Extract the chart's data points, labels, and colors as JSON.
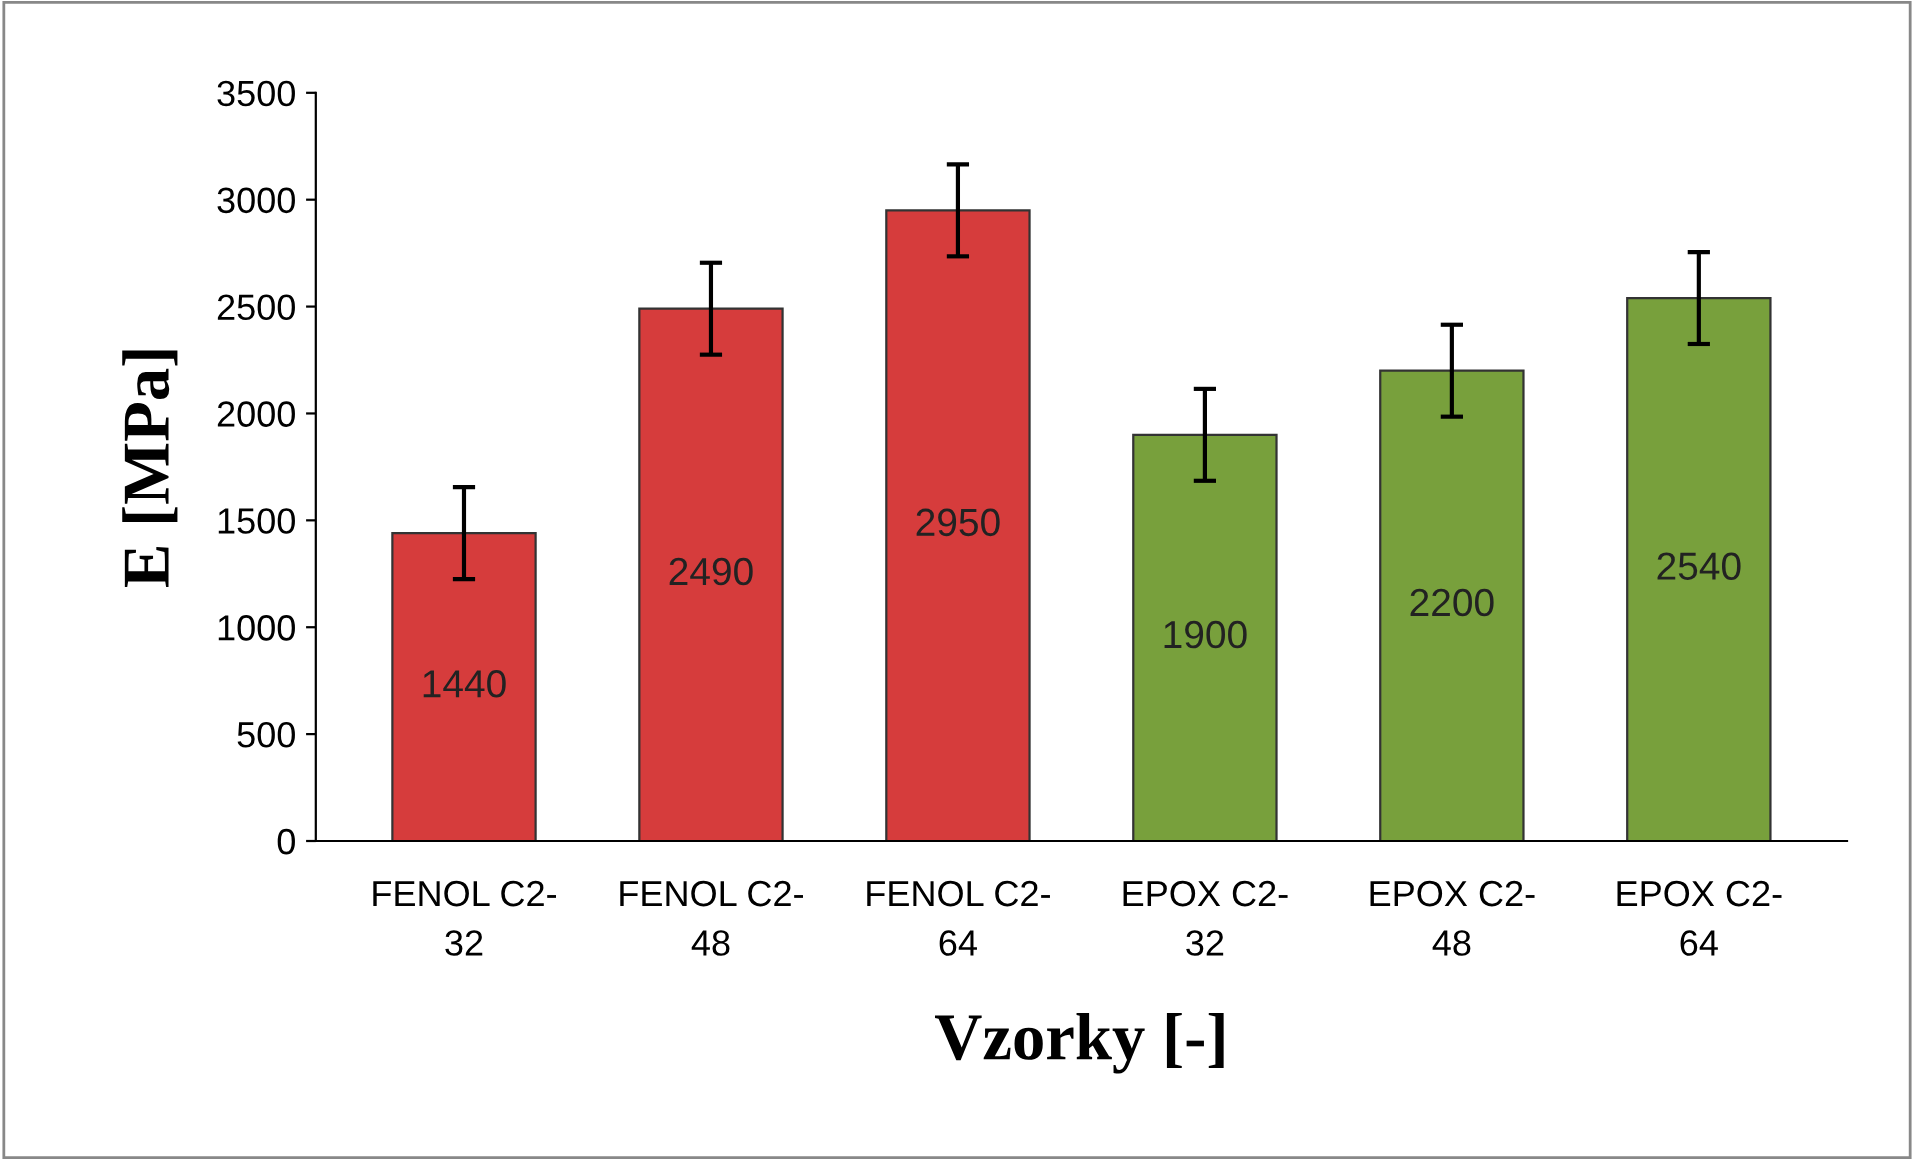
{
  "chart_data": {
    "type": "bar",
    "categories": [
      "FENOL C2-\n32",
      "FENOL C2-\n48",
      "FENOL C2-\n64",
      "EPOX C2-\n32",
      "EPOX C2-\n48",
      "EPOX C2-\n64"
    ],
    "values": [
      1440,
      2490,
      2950,
      1900,
      2200,
      2540
    ],
    "colors": [
      "#d63c3c",
      "#d63c3c",
      "#d63c3c",
      "#78a03c",
      "#78a03c",
      "#78a03c"
    ],
    "errors": [
      215,
      215,
      215,
      215,
      215,
      215
    ],
    "data_labels": true,
    "xlabel": "Vzorky [-]",
    "ylabel": "E [MPa]",
    "ylim": [
      0,
      3500
    ],
    "yticks": [
      0,
      500,
      1000,
      1500,
      2000,
      2500,
      3000,
      3500
    ],
    "grid": false,
    "legend": false
  }
}
